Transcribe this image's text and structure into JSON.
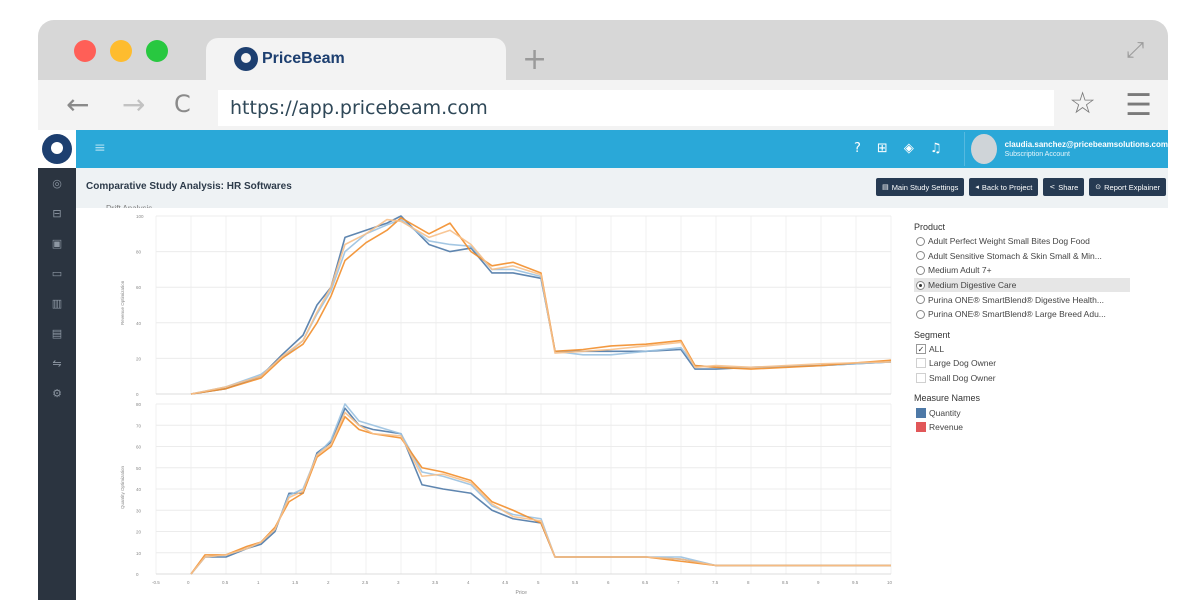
{
  "browser": {
    "tab_title": "PriceBeam",
    "new_tab_symbol": "+",
    "url": "https://app.pricebeam.com",
    "back_symbol": "←",
    "forward_symbol": "→",
    "reload_symbol": "C",
    "star_symbol": "☆",
    "menu_symbol": "☰",
    "expand_symbol": "⤢",
    "dot_colors": [
      "#ff5f57",
      "#febc2e",
      "#28c840"
    ]
  },
  "topbar": {
    "menu_symbol": "≡",
    "icons": [
      "help-icon",
      "book-icon",
      "graduation-icon",
      "bell-icon"
    ],
    "user_email": "claudia.sanchez@pricebeamsolutions.com",
    "user_role": "Subscription Account"
  },
  "sidebar": {
    "icons": [
      "dashboard-icon",
      "briefcase-icon",
      "clipboard-icon",
      "video-icon",
      "bar-chart-icon",
      "library-icon",
      "link-icon",
      "settings-icon"
    ]
  },
  "page": {
    "title": "Comparative Study Analysis: HR Softwares",
    "chart_label": "Drift Analysis",
    "buttons": [
      {
        "icon": "▤",
        "label": "Main Study Settings"
      },
      {
        "icon": "◂",
        "label": "Back to Project"
      },
      {
        "icon": "<",
        "label": "Share"
      },
      {
        "icon": "⊙",
        "label": "Report Explainer"
      }
    ]
  },
  "filters": {
    "product_title": "Product",
    "products": [
      "Adult Perfect Weight Small Bites Dog Food",
      "Adult Sensitive Stomach & Skin Small & Min...",
      "Medium Adult 7+",
      "Medium Digestive Care",
      "Purina ONE® SmartBlend® Digestive Health...",
      "Purina ONE® SmartBlend® Large Breed Adu..."
    ],
    "selected_product": 3,
    "segment_title": "Segment",
    "segments": [
      "ALL",
      "Large Dog Owner",
      "Small Dog Owner"
    ],
    "segment_checked": [
      true,
      false,
      false
    ],
    "measure_title": "Measure Names",
    "measures": [
      {
        "name": "Quantity",
        "color": "#4e79a7"
      },
      {
        "name": "Revenue",
        "color": "#e15759"
      }
    ]
  },
  "chart_data": [
    {
      "type": "line",
      "ylabel": "Revenue Optimization",
      "ylim": [
        0,
        100
      ],
      "yticks": [
        0,
        20,
        40,
        60,
        80,
        100
      ],
      "xlim": [
        -0.5,
        10.0
      ],
      "x": [
        0.0,
        0.5,
        1.0,
        1.3,
        1.6,
        1.8,
        2.0,
        2.2,
        2.5,
        2.8,
        3.0,
        3.4,
        3.7,
        4.0,
        4.3,
        4.6,
        5.0,
        5.2,
        5.6,
        6.0,
        6.5,
        7.0,
        7.2,
        7.5,
        8.0,
        9.0,
        10.0
      ],
      "series": [
        {
          "values": [
            0,
            3,
            10,
            22,
            33,
            50,
            60,
            88,
            92,
            96,
            100,
            84,
            80,
            82,
            68,
            68,
            65,
            24,
            24,
            24,
            24,
            25,
            14,
            14,
            15,
            16,
            18
          ],
          "color": "#4e79a7"
        },
        {
          "values": [
            0,
            4,
            11,
            20,
            30,
            45,
            58,
            80,
            90,
            95,
            98,
            86,
            84,
            83,
            70,
            70,
            66,
            24,
            22,
            22,
            24,
            26,
            16,
            15,
            15,
            16,
            18
          ],
          "color": "#9ac1e0"
        },
        {
          "values": [
            0,
            3,
            9,
            20,
            28,
            40,
            55,
            75,
            85,
            92,
            99,
            90,
            96,
            80,
            72,
            74,
            68,
            24,
            25,
            27,
            28,
            30,
            16,
            15,
            14,
            16,
            19
          ],
          "color": "#f28e2b"
        },
        {
          "values": [
            0,
            4,
            10,
            21,
            30,
            46,
            60,
            84,
            90,
            98,
            97,
            88,
            92,
            84,
            70,
            72,
            67,
            23,
            24,
            25,
            27,
            29,
            15,
            16,
            15,
            17,
            18
          ],
          "color": "#f7c08a"
        }
      ]
    },
    {
      "type": "line",
      "ylabel": "Quantity Optimization",
      "xlabel": "Price",
      "ylim": [
        0,
        80
      ],
      "yticks": [
        0,
        10,
        20,
        30,
        40,
        50,
        60,
        70,
        80
      ],
      "xlim": [
        -0.5,
        10.0
      ],
      "xticks": [
        -0.5,
        0.0,
        0.5,
        1.0,
        1.5,
        2.0,
        2.5,
        3.0,
        3.5,
        4.0,
        4.5,
        5.0,
        5.5,
        6.0,
        6.5,
        7.0,
        7.5,
        8.0,
        8.5,
        9.0,
        9.5,
        10.0
      ],
      "x": [
        0.0,
        0.2,
        0.5,
        0.8,
        1.0,
        1.2,
        1.4,
        1.6,
        1.8,
        2.0,
        2.2,
        2.4,
        2.6,
        3.0,
        3.3,
        3.6,
        4.0,
        4.3,
        4.6,
        5.0,
        5.2,
        5.5,
        6.0,
        6.5,
        7.0,
        7.5,
        8.0,
        9.0,
        10.0
      ],
      "series": [
        {
          "values": [
            0,
            8,
            8,
            12,
            14,
            20,
            38,
            38,
            57,
            62,
            78,
            70,
            68,
            66,
            42,
            40,
            38,
            30,
            26,
            24,
            8,
            8,
            8,
            8,
            7,
            4,
            4,
            4,
            4
          ],
          "color": "#4e79a7"
        },
        {
          "values": [
            0,
            8,
            9,
            12,
            15,
            21,
            37,
            40,
            56,
            63,
            80,
            72,
            70,
            66,
            48,
            46,
            42,
            32,
            28,
            26,
            8,
            8,
            8,
            8,
            8,
            4,
            4,
            4,
            4
          ],
          "color": "#9ac1e0"
        },
        {
          "values": [
            0,
            9,
            9,
            13,
            15,
            22,
            34,
            38,
            55,
            60,
            74,
            68,
            66,
            64,
            50,
            48,
            44,
            34,
            30,
            24,
            8,
            8,
            8,
            8,
            6,
            4,
            4,
            4,
            4
          ],
          "color": "#f28e2b"
        },
        {
          "values": [
            0,
            8,
            9,
            12,
            15,
            21,
            36,
            39,
            56,
            61,
            76,
            70,
            66,
            65,
            46,
            47,
            43,
            33,
            27,
            25,
            8,
            8,
            8,
            8,
            7,
            4,
            4,
            4,
            4
          ],
          "color": "#f7c08a"
        }
      ]
    }
  ]
}
